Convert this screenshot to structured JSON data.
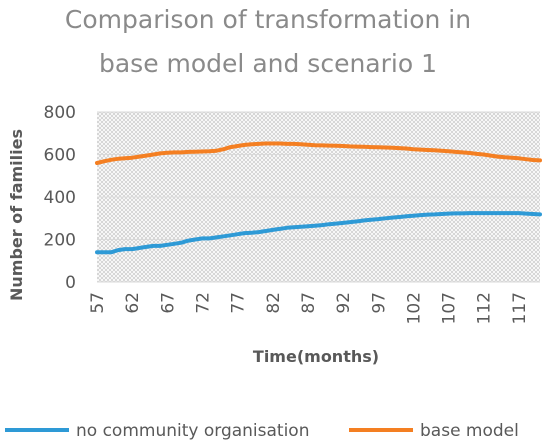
{
  "chart_data": {
    "type": "line",
    "title_lines": [
      "Comparison of transformation in",
      "base model and scenario 1"
    ],
    "xlabel": "Time(months)",
    "ylabel": "Number of families",
    "ylim": [
      0,
      800
    ],
    "yticks": [
      "0",
      "200",
      "400",
      "600",
      "800"
    ],
    "xlim": [
      57,
      120
    ],
    "xticks": [
      "57",
      "62",
      "67",
      "72",
      "77",
      "82",
      "87",
      "92",
      "97",
      "102",
      "107",
      "112",
      "117"
    ],
    "grid": true,
    "legend_position": "bottom",
    "series": [
      {
        "name": "no community organisation",
        "color": "#2e9ad6",
        "x": [
          57,
          58,
          59,
          60,
          61,
          62,
          63,
          64,
          65,
          66,
          67,
          68,
          69,
          70,
          71,
          72,
          73,
          74,
          75,
          76,
          77,
          78,
          79,
          80,
          81,
          82,
          83,
          84,
          85,
          86,
          87,
          88,
          89,
          90,
          91,
          92,
          93,
          94,
          95,
          96,
          97,
          98,
          99,
          100,
          101,
          102,
          103,
          104,
          105,
          106,
          107,
          108,
          109,
          110,
          111,
          112,
          113,
          114,
          115,
          116,
          117,
          118,
          119,
          120
        ],
        "values": [
          140,
          140,
          140,
          150,
          155,
          155,
          160,
          165,
          170,
          170,
          175,
          180,
          185,
          195,
          200,
          205,
          205,
          210,
          215,
          220,
          225,
          230,
          232,
          235,
          240,
          245,
          250,
          255,
          258,
          260,
          262,
          265,
          268,
          272,
          275,
          278,
          282,
          285,
          290,
          293,
          296,
          300,
          303,
          306,
          309,
          312,
          315,
          317,
          318,
          320,
          322,
          323,
          323,
          324,
          324,
          324,
          324,
          324,
          324,
          324,
          324,
          322,
          320,
          318
        ]
      },
      {
        "name": "base model",
        "color": "#f47f22",
        "x": [
          57,
          58,
          59,
          60,
          61,
          62,
          63,
          64,
          65,
          66,
          67,
          68,
          69,
          70,
          71,
          72,
          73,
          74,
          75,
          76,
          77,
          78,
          79,
          80,
          81,
          82,
          83,
          84,
          85,
          86,
          87,
          88,
          89,
          90,
          91,
          92,
          93,
          94,
          95,
          96,
          97,
          98,
          99,
          100,
          101,
          102,
          103,
          104,
          105,
          106,
          107,
          108,
          109,
          110,
          111,
          112,
          113,
          114,
          115,
          116,
          117,
          118,
          119,
          120
        ],
        "values": [
          560,
          568,
          575,
          580,
          582,
          585,
          590,
          595,
          600,
          605,
          608,
          610,
          610,
          612,
          613,
          614,
          615,
          618,
          625,
          635,
          640,
          645,
          648,
          650,
          652,
          652,
          652,
          650,
          650,
          648,
          646,
          644,
          643,
          642,
          641,
          640,
          638,
          637,
          636,
          635,
          634,
          633,
          632,
          630,
          628,
          625,
          623,
          621,
          620,
          618,
          615,
          612,
          610,
          607,
          603,
          600,
          595,
          590,
          587,
          585,
          582,
          578,
          574,
          572
        ]
      }
    ]
  }
}
